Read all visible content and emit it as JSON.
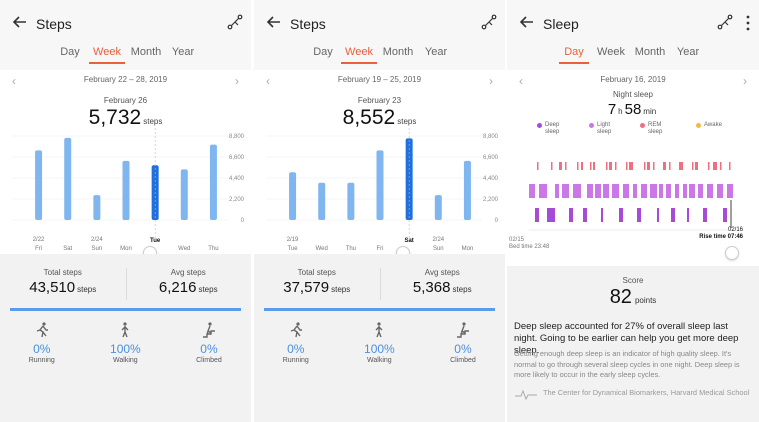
{
  "colors": {
    "accent": "#e8603c",
    "bar": "#7fb6f0",
    "bar_selected": "#1f6fde",
    "stat_blue": "#4a90e2",
    "deep": "#a64bd6",
    "light": "#cc77e6",
    "rem": "#ee6f80",
    "awake": "#f2b84b"
  },
  "icons": {
    "back": "arrow-left-icon",
    "share": "share-icon",
    "more": "more-vertical-icon",
    "prev": "chevron-left-icon",
    "next": "chevron-right-icon",
    "running": "running-icon",
    "walking": "walking-icon",
    "climbed": "climbing-icon"
  },
  "tabs": [
    "Day",
    "Week",
    "Month",
    "Year"
  ],
  "panel1": {
    "title": "Steps",
    "active_tab": "Week",
    "range": "February 22 – 28, 2019",
    "selected_date": "February 26",
    "selected_value": "5,732",
    "unit": "steps",
    "chart_data": {
      "type": "bar",
      "categories": [
        "Fri",
        "Sat",
        "Sun",
        "Mon",
        "Tue",
        "Wed",
        "Thu"
      ],
      "date_labels": [
        "2/22",
        "",
        "2/24",
        "",
        "",
        "",
        ""
      ],
      "values": [
        7300,
        8600,
        2600,
        6200,
        5732,
        5300,
        7900
      ],
      "selected_index": 4,
      "y_ticks": [
        "8,800",
        "6,600",
        "4,400",
        "2,200",
        "0"
      ],
      "ylim": [
        0,
        8800
      ]
    },
    "total_label": "Total steps",
    "total_value": "43,510",
    "avg_label": "Avg steps",
    "avg_value": "6,216",
    "activities": [
      {
        "name": "Running",
        "value": "0%"
      },
      {
        "name": "Walking",
        "value": "100%"
      },
      {
        "name": "Climbed",
        "value": "0%"
      }
    ]
  },
  "panel2": {
    "title": "Steps",
    "active_tab": "Week",
    "range": "February 19 – 25, 2019",
    "selected_date": "February 23",
    "selected_value": "8,552",
    "unit": "steps",
    "chart_data": {
      "type": "bar",
      "categories": [
        "Tue",
        "Wed",
        "Thu",
        "Fri",
        "Sat",
        "Sun",
        "Mon"
      ],
      "date_labels": [
        "2/19",
        "",
        "",
        "",
        "",
        "2/24",
        ""
      ],
      "values": [
        5000,
        3900,
        3900,
        7300,
        8552,
        2600,
        6200
      ],
      "selected_index": 4,
      "y_ticks": [
        "8,800",
        "6,600",
        "4,400",
        "2,200",
        "0"
      ],
      "ylim": [
        0,
        8800
      ]
    },
    "total_label": "Total steps",
    "total_value": "37,579",
    "avg_label": "Avg steps",
    "avg_value": "5,368",
    "activities": [
      {
        "name": "Running",
        "value": "0%"
      },
      {
        "name": "Walking",
        "value": "100%"
      },
      {
        "name": "Climbed",
        "value": "0%"
      }
    ]
  },
  "panel3": {
    "title": "Sleep",
    "active_tab": "Day",
    "date": "February 16, 2019",
    "night_label": "Night sleep",
    "hours": "7",
    "hours_unit": "h",
    "minutes": "58",
    "minutes_unit": "min",
    "legend": [
      {
        "key": "deep",
        "label": "Deep\nsleep"
      },
      {
        "key": "light",
        "label": "Light\nsleep"
      },
      {
        "key": "rem",
        "label": "REM\nsleep"
      },
      {
        "key": "awake",
        "label": "Awake"
      }
    ],
    "bed_date": "02/15",
    "bed_time": "Bed time 23:48",
    "rise_date": "02/16",
    "rise_time": "Rise time 07:46",
    "score_label": "Score",
    "score_value": "82",
    "score_unit": "points",
    "message": "Deep sleep accounted for 27% of overall sleep last night. Going to be earlier can help you get more deep sleep.",
    "detail": "Getting enough deep sleep is an indicator of high quality sleep. It's normal to go through several sleep cycles in one night. Deep sleep is more likely to occur in the early sleep cycles.",
    "source": "The Center for Dynamical Biomarkers, Harvard Medical School"
  }
}
